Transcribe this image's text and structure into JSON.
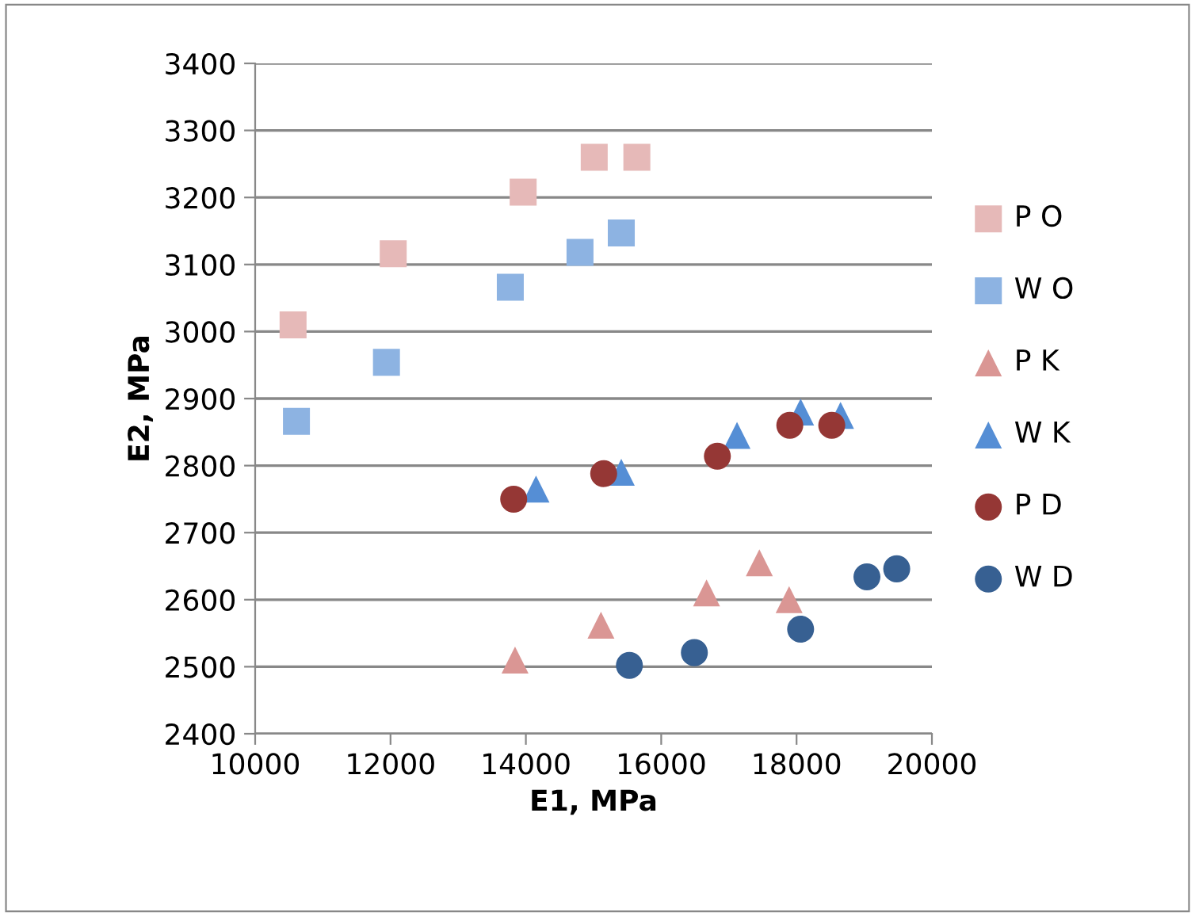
{
  "chart_data": {
    "type": "scatter",
    "xlabel": "E1, MPa",
    "ylabel": "E2, MPa",
    "xlim": [
      10000,
      20000
    ],
    "xticks": [
      10000,
      12000,
      14000,
      16000,
      18000,
      20000
    ],
    "ylim": [
      2400,
      3400
    ],
    "yticks": [
      2400,
      2500,
      2600,
      2700,
      2800,
      2900,
      3000,
      3100,
      3200,
      3300,
      3400
    ],
    "grid": "y",
    "legend": "right",
    "series": [
      {
        "name": "P O",
        "color": "#e6b9b8",
        "marker": "square",
        "x": [
          10560,
          12040,
          13960,
          15010,
          15640
        ],
        "values": [
          3010,
          3116,
          3208,
          3260,
          3260
        ]
      },
      {
        "name": "W O",
        "color": "#8db3e2",
        "marker": "square",
        "x": [
          10610,
          11940,
          13770,
          14800,
          15410
        ],
        "values": [
          2866,
          2954,
          3066,
          3118,
          3147
        ]
      },
      {
        "name": "P K",
        "color": "#da9694",
        "marker": "triangle",
        "x": [
          13840,
          15110,
          16670,
          17450,
          17890
        ],
        "values": [
          2510,
          2562,
          2610,
          2655,
          2600
        ]
      },
      {
        "name": "W K",
        "color": "#558ed5",
        "marker": "triangle",
        "x": [
          14150,
          15410,
          17120,
          18060,
          18650
        ],
        "values": [
          2765,
          2790,
          2845,
          2880,
          2875
        ]
      },
      {
        "name": "P D",
        "color": "#953735",
        "marker": "circle",
        "x": [
          13820,
          15150,
          16830,
          17900,
          18520
        ],
        "values": [
          2750,
          2788,
          2814,
          2860,
          2860
        ]
      },
      {
        "name": "W D",
        "color": "#376092",
        "marker": "circle",
        "x": [
          15530,
          16490,
          18060,
          19040,
          19480
        ],
        "values": [
          2502,
          2521,
          2556,
          2634,
          2646
        ]
      }
    ]
  }
}
